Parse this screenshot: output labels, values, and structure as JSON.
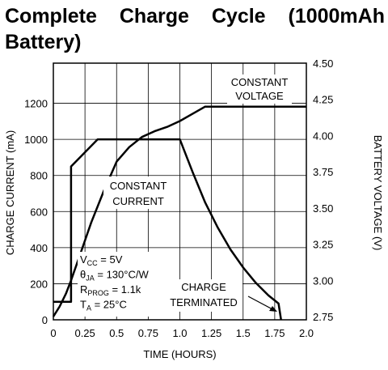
{
  "title_line1": "Complete Charge Cycle (1000mAh",
  "title_line2": "Battery)",
  "chart_data": {
    "type": "line",
    "xlabel": "TIME (HOURS)",
    "ylabel": "CHARGE CURRENT (mA)",
    "y2label": "BATTERY VOLTAGE (V)",
    "xlim": [
      0,
      2.0
    ],
    "ylim": [
      0,
      1400
    ],
    "y2lim": [
      2.75,
      4.5
    ],
    "xticks": [
      "0",
      "0.25",
      "0.5",
      "0.75",
      "1.0",
      "1.25",
      "1.5",
      "1.75",
      "2.0"
    ],
    "xtick_values": [
      0,
      0.25,
      0.5,
      0.75,
      1.0,
      1.25,
      1.5,
      1.75,
      2.0
    ],
    "yticks": [
      "0",
      "200",
      "400",
      "600",
      "800",
      "1000",
      "1200"
    ],
    "ytick_values": [
      0,
      200,
      400,
      600,
      800,
      1000,
      1200
    ],
    "y2ticks": [
      "2.75",
      "3.00",
      "3.25",
      "3.50",
      "3.75",
      "4.00",
      "4.25",
      "4.50"
    ],
    "y2tick_values": [
      2.75,
      3.0,
      3.25,
      3.5,
      3.75,
      4.0,
      4.25,
      4.5
    ],
    "grid": true,
    "series": [
      {
        "axis": "left",
        "x": [
          0,
          0.14,
          0.14,
          0.35,
          1.0,
          1.1,
          1.2,
          1.3,
          1.4,
          1.5,
          1.6,
          1.7,
          1.78,
          1.8
        ],
        "y": [
          100,
          100,
          850,
          1000,
          1000,
          820,
          650,
          510,
          390,
          290,
          205,
          135,
          90,
          0
        ]
      },
      {
        "axis": "right",
        "x": [
          0,
          0.05,
          0.1,
          0.14,
          0.2,
          0.3,
          0.4,
          0.5,
          0.6,
          0.7,
          0.8,
          0.9,
          1.0,
          1.1,
          1.2,
          1.35,
          2.0
        ],
        "y": [
          2.75,
          2.82,
          2.91,
          3.0,
          3.15,
          3.4,
          3.62,
          3.82,
          3.92,
          3.99,
          4.03,
          4.06,
          4.1,
          4.15,
          4.2,
          4.2,
          4.2
        ]
      }
    ],
    "annotations": [
      {
        "text": [
          "CONSTANT",
          "VOLTAGE"
        ]
      },
      {
        "text": [
          "CONSTANT",
          "CURRENT"
        ]
      },
      {
        "text": [
          "CHARGE",
          "TERMINATED"
        ]
      }
    ],
    "conditions": [
      {
        "main": "V",
        "sub": "CC",
        "rest": " = 5V"
      },
      {
        "main": "θ",
        "sub": "JA",
        "rest": " = 130°C/W"
      },
      {
        "main": "R",
        "sub": "PROG",
        "rest": " = 1.1k"
      },
      {
        "main": "T",
        "sub": "A",
        "rest": " = 25°C"
      }
    ]
  }
}
